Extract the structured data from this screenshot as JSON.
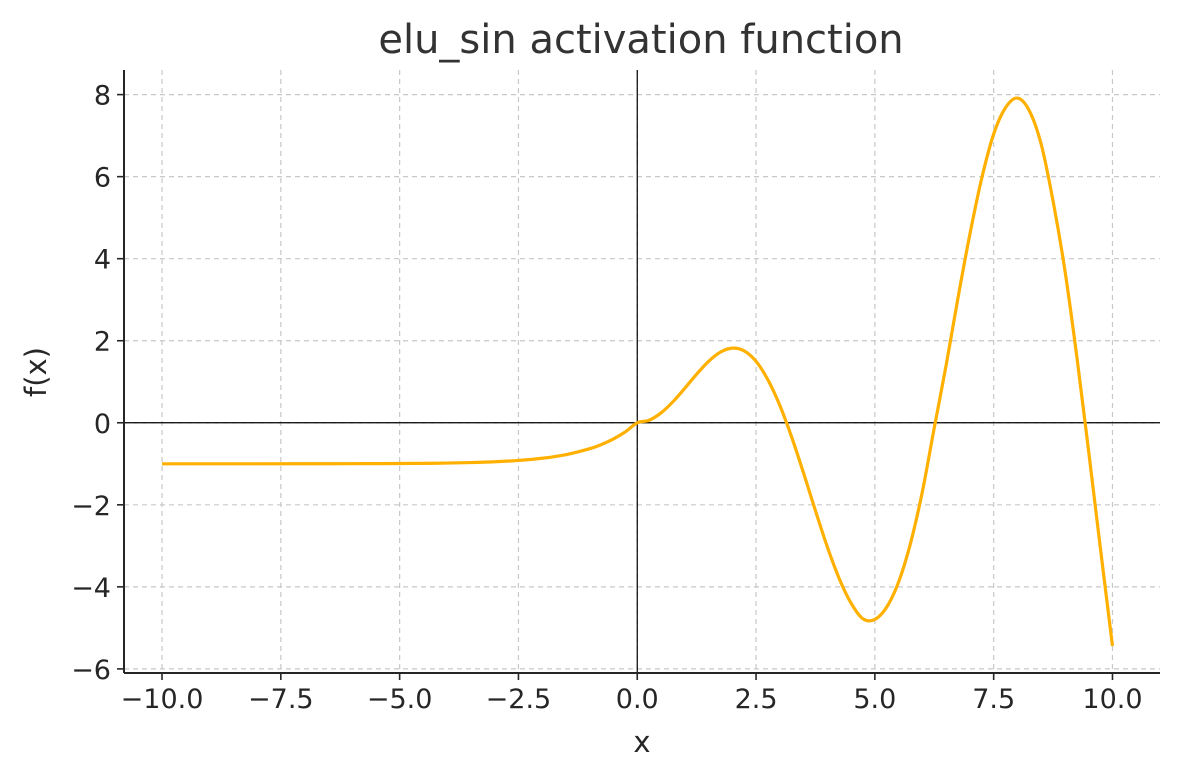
{
  "chart_data": {
    "type": "line",
    "title": "elu_sin activation function",
    "xlabel": "x",
    "ylabel": "f(x)",
    "xlim": [
      -10.8,
      11.0
    ],
    "ylim": [
      -6.1,
      8.6
    ],
    "xticks": [
      -10.0,
      -7.5,
      -5.0,
      -2.5,
      0.0,
      2.5,
      5.0,
      7.5,
      10.0
    ],
    "xtick_labels": [
      "−10.0",
      "−7.5",
      "−5.0",
      "−2.5",
      "0.0",
      "2.5",
      "5.0",
      "7.5",
      "10.0"
    ],
    "yticks": [
      -6,
      -4,
      -2,
      0,
      2,
      4,
      6,
      8
    ],
    "ytick_labels": [
      "−6",
      "−4",
      "−2",
      "0",
      "2",
      "4",
      "6",
      "8"
    ],
    "grid": true,
    "zero_lines": true,
    "colors": {
      "line": "#FFB000"
    },
    "series": [
      {
        "x": [
          -10.0,
          -9.0,
          -8.0,
          -7.0,
          -6.0,
          -5.0,
          -4.5,
          -4.0,
          -3.5,
          -3.0,
          -2.5,
          -2.0,
          -1.5,
          -1.0,
          -0.75,
          -0.5,
          -0.25,
          0.0,
          0.25,
          0.5,
          0.75,
          1.0,
          1.25,
          1.5,
          1.75,
          2.0,
          2.25,
          2.5,
          2.75,
          3.0,
          3.25,
          3.5,
          3.75,
          4.0,
          4.25,
          4.5,
          4.75,
          5.0,
          5.25,
          5.5,
          5.75,
          6.0,
          6.25,
          6.5,
          6.75,
          7.0,
          7.25,
          7.5,
          7.75,
          8.0,
          8.25,
          8.5,
          8.75,
          9.0,
          9.25,
          9.5,
          9.75,
          10.0
        ],
        "y": [
          -1.0,
          -1.0,
          -1.0,
          -0.999,
          -0.998,
          -0.993,
          -0.989,
          -0.982,
          -0.97,
          -0.95,
          -0.918,
          -0.865,
          -0.777,
          -0.632,
          -0.528,
          -0.393,
          -0.221,
          0.0,
          0.062,
          0.24,
          0.511,
          0.841,
          1.186,
          1.496,
          1.722,
          1.819,
          1.752,
          1.496,
          1.047,
          0.423,
          -0.352,
          -1.228,
          -2.144,
          -3.027,
          -3.798,
          -4.399,
          -4.78,
          -4.795,
          -4.492,
          -3.88,
          -2.938,
          -1.676,
          -0.121,
          1.404,
          3.05,
          4.599,
          5.966,
          7.038,
          7.682,
          7.915,
          7.606,
          6.79,
          5.405,
          3.709,
          1.612,
          -0.712,
          -3.099,
          -5.44
        ]
      }
    ]
  }
}
